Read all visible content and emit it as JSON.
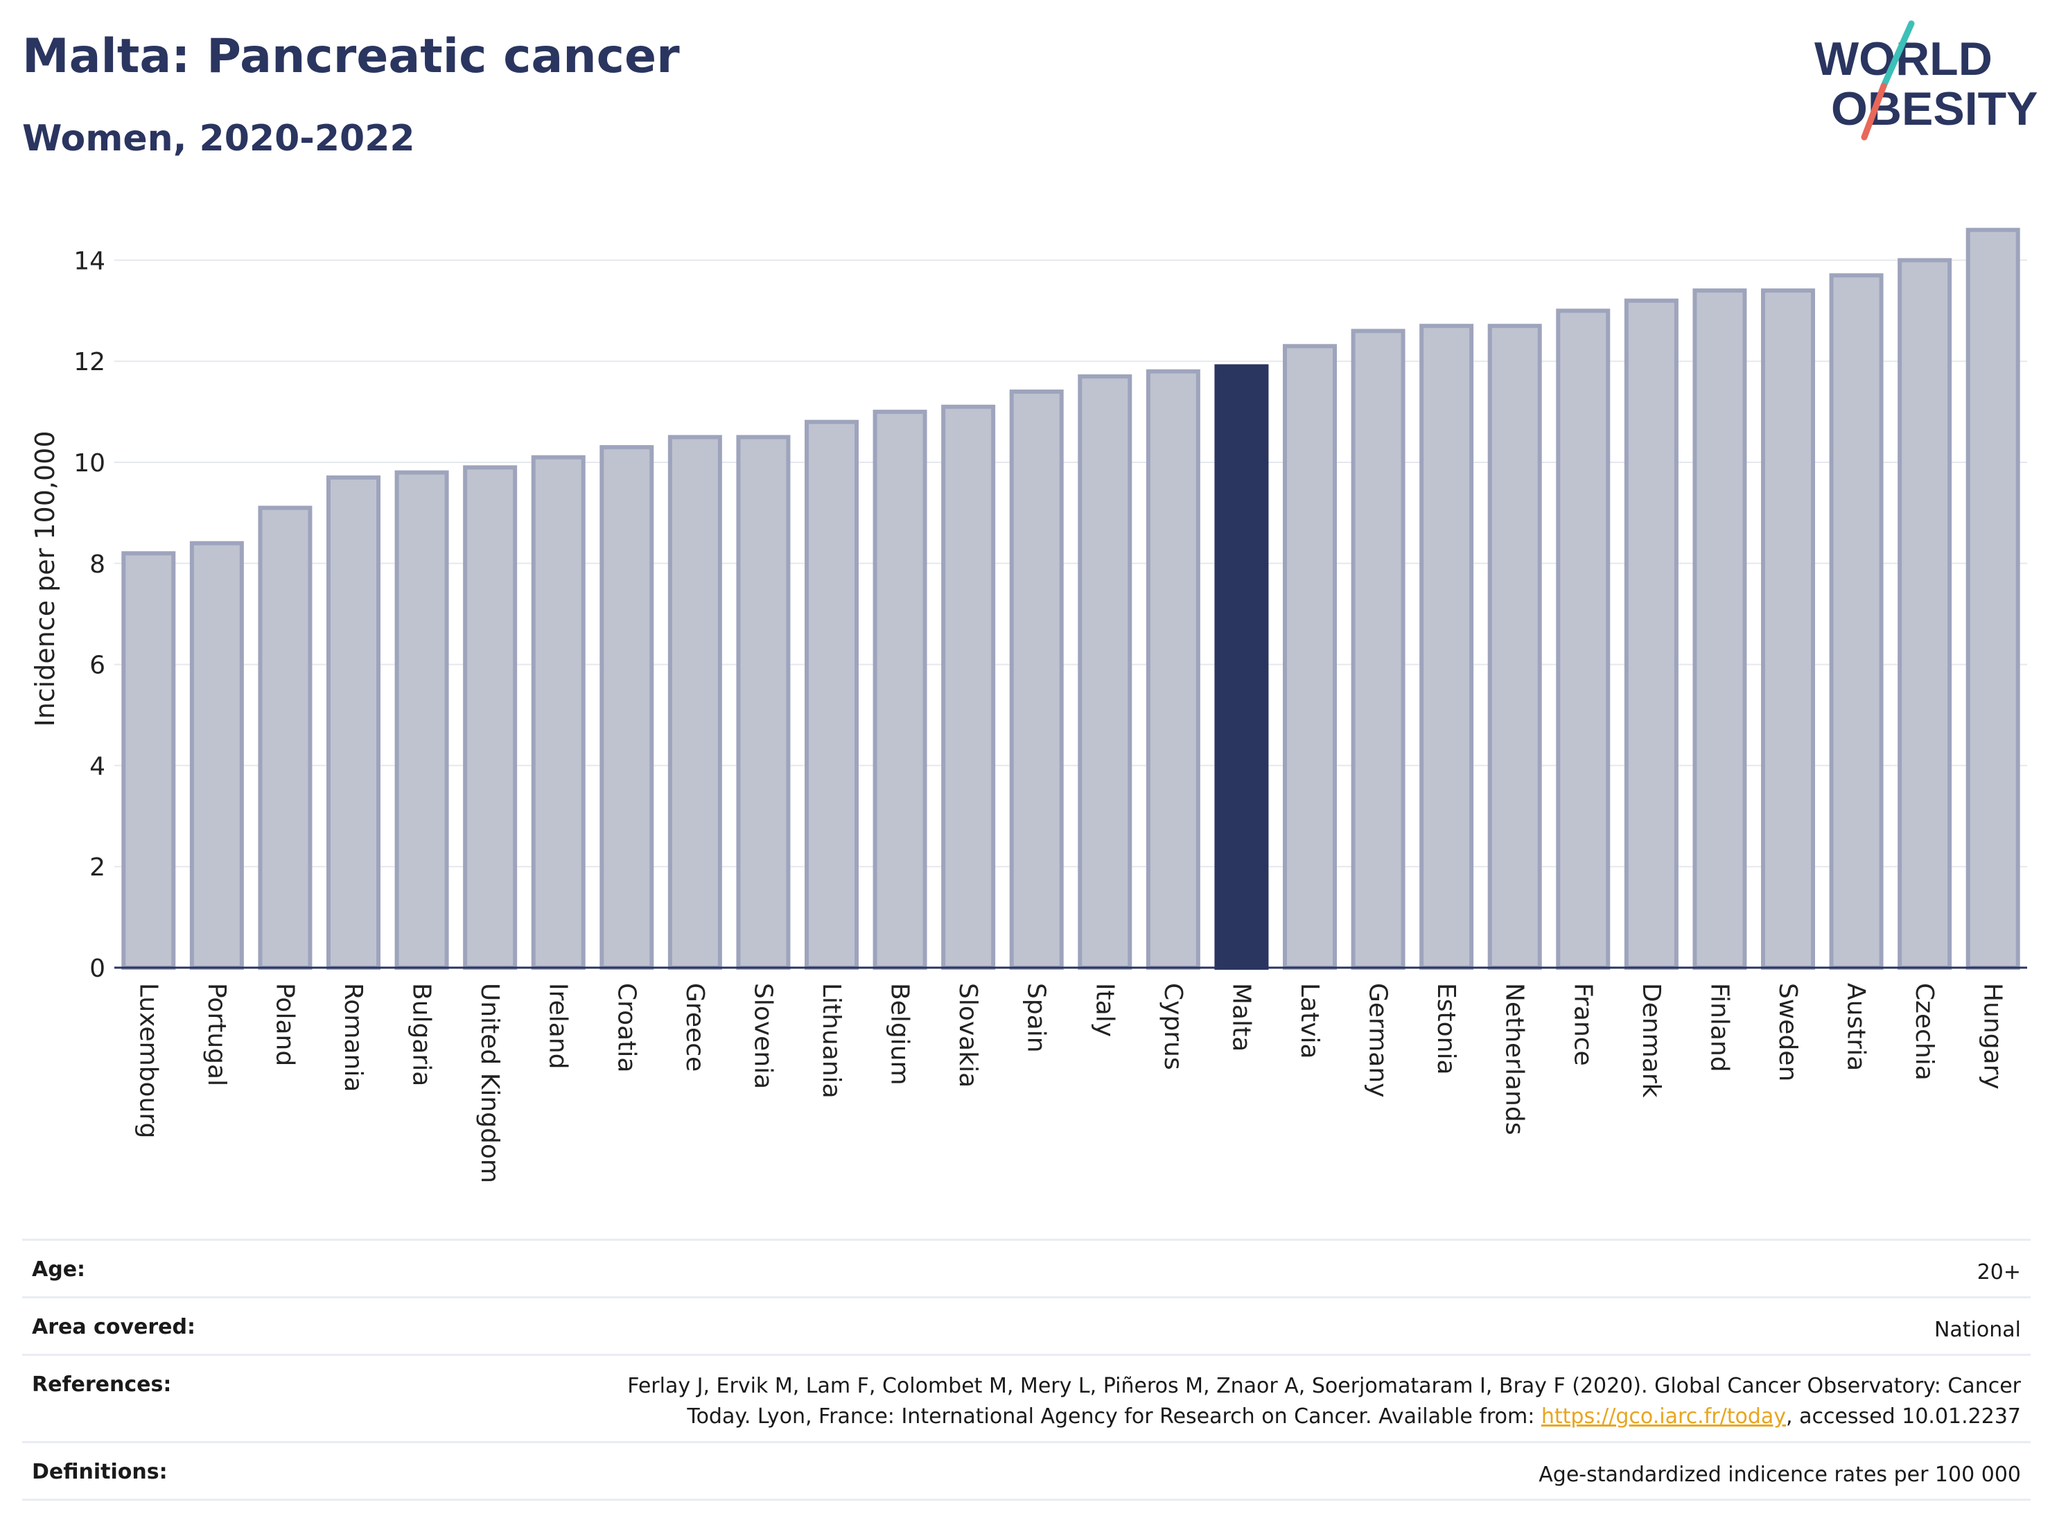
{
  "header": {
    "title": "Malta: Pancreatic cancer",
    "subtitle": "Women, 2020-2022"
  },
  "logo": {
    "line1": "WORLD",
    "line2": "OBESITY"
  },
  "colors": {
    "highlight": "#2a3560",
    "bar_fill": "#bfc3d0",
    "bar_stroke": "#9ea4bc",
    "logo_teal": "#3cc0b8",
    "logo_coral": "#e8685a",
    "link": "#e8a51f"
  },
  "chart_data": {
    "type": "bar",
    "title": "Malta: Pancreatic cancer",
    "subtitle": "Women, 2020-2022",
    "xlabel": "",
    "ylabel": "Incidence per 100,000",
    "ylim": [
      0,
      15
    ],
    "yticks": [
      0,
      2,
      4,
      6,
      8,
      10,
      12,
      14
    ],
    "grid": true,
    "highlight": "Malta",
    "categories": [
      "Luxembourg",
      "Portugal",
      "Poland",
      "Romania",
      "Bulgaria",
      "United Kingdom",
      "Ireland",
      "Croatia",
      "Greece",
      "Slovenia",
      "Lithuania",
      "Belgium",
      "Slovakia",
      "Spain",
      "Italy",
      "Cyprus",
      "Malta",
      "Latvia",
      "Germany",
      "Estonia",
      "Netherlands",
      "France",
      "Denmark",
      "Finland",
      "Sweden",
      "Austria",
      "Czechia",
      "Hungary"
    ],
    "values": [
      8.2,
      8.4,
      9.1,
      9.7,
      9.8,
      9.9,
      10.1,
      10.3,
      10.5,
      10.5,
      10.8,
      11.0,
      11.1,
      11.4,
      11.7,
      11.8,
      11.9,
      12.3,
      12.6,
      12.7,
      12.7,
      13.0,
      13.2,
      13.4,
      13.4,
      13.7,
      14.0,
      14.6
    ]
  },
  "meta": {
    "age_label": "Age:",
    "age_value": "20+",
    "area_label": "Area covered:",
    "area_value": "National",
    "references_label": "References:",
    "references_line1": "Ferlay J, Ervik M, Lam F, Colombet M, Mery L, Piñeros M, Znaor A, Soerjomataram I, Bray F (2020). Global Cancer Observatory: Cancer",
    "references_line2_pre": "Today. Lyon, France: International Agency for Research on Cancer. Available from: ",
    "references_link": "https://gco.iarc.fr/today",
    "references_line2_post": ", accessed 10.01.2237",
    "definitions_label": "Definitions:",
    "definitions_value": "Age-standardized indicence rates per 100 000"
  }
}
